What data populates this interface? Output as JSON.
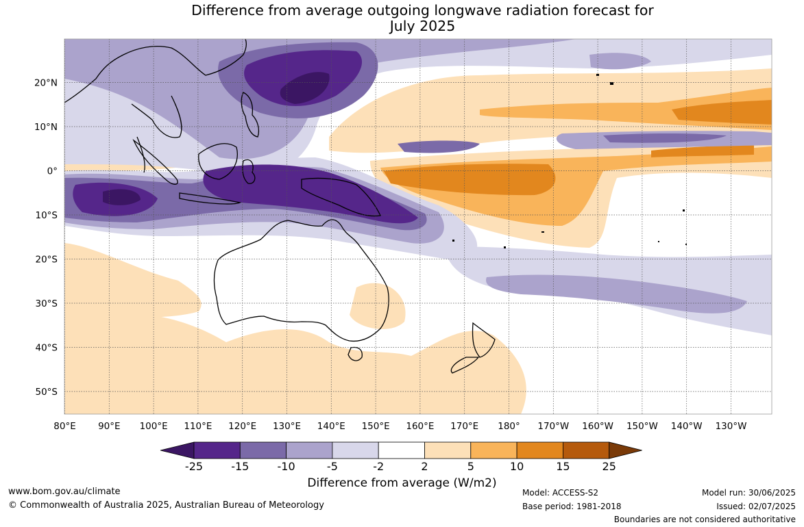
{
  "title_line1": "Difference from average outgoing longwave radiation forecast for",
  "title_line2": "July 2025",
  "lat_labels": [
    "20°N",
    "10°N",
    "0°",
    "10°S",
    "20°S",
    "30°S",
    "40°S",
    "50°S"
  ],
  "lon_labels": [
    "80°E",
    "90°E",
    "100°E",
    "110°E",
    "120°E",
    "130°E",
    "140°E",
    "150°E",
    "160°E",
    "170°E",
    "180°",
    "170°W",
    "160°W",
    "150°W",
    "140°W",
    "130°W"
  ],
  "colorbar": {
    "ticks": [
      "-25",
      "-15",
      "-10",
      "-5",
      "-2",
      "2",
      "5",
      "10",
      "15",
      "25"
    ],
    "colors": [
      "#3b1663",
      "#55268a",
      "#7b6aa8",
      "#aba3cc",
      "#d8d7ea",
      "#ffffff",
      "#fde0b8",
      "#f9b45a",
      "#e2871e",
      "#b55a0c",
      "#7a3a08"
    ],
    "label": "Difference from average (W/m2)"
  },
  "footer": {
    "website": "www.bom.gov.au/climate",
    "copyright": "© Commonwealth of Australia 2025, Australian Bureau of Meteorology",
    "model": "Model: ACCESS-S2",
    "base_period": "Base period: 1981-2018",
    "model_run": "Model run: 30/06/2025",
    "issued": "Issued: 02/07/2025",
    "disclaimer": "Boundaries are not considered authoritative"
  }
}
